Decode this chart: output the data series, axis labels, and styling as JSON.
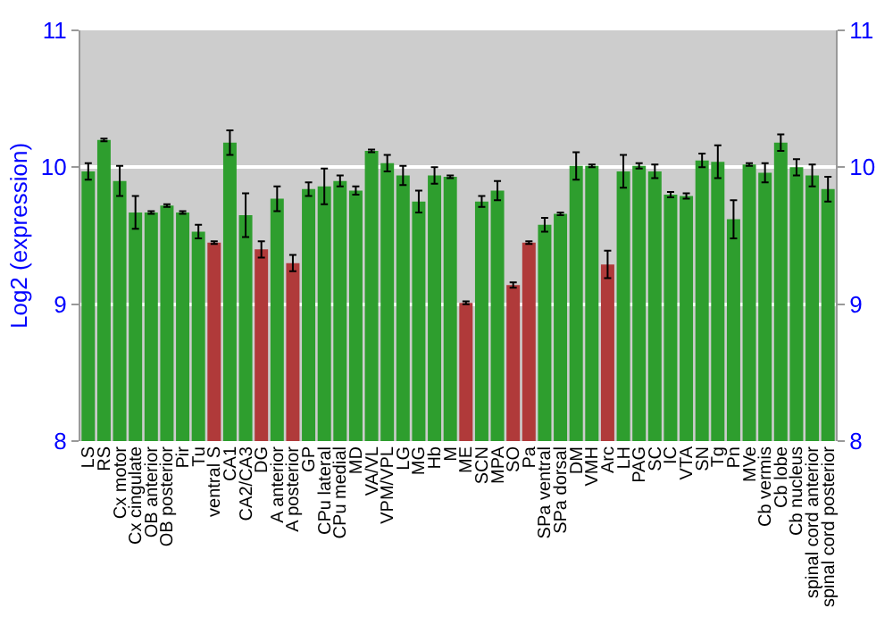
{
  "chart_data": {
    "type": "bar",
    "ylabel": "Log2 (expression)",
    "categories": [
      "LS",
      "RS",
      "Cx motor",
      "Cx cingulate",
      "OB anterior",
      "OB posterior",
      "Pir",
      "Tu",
      "ventral S",
      "CA1",
      "CA2/CA3",
      "DG",
      "A anterior",
      "A posterior",
      "GP",
      "CPu lateral",
      "CPu medial",
      "MD",
      "VA/VL",
      "VPM/VPL",
      "LG",
      "MG",
      "Hb",
      "M",
      "ME",
      "SCN",
      "MPA",
      "SO",
      "Pa",
      "SPa ventral",
      "SPa dorsal",
      "DM",
      "VMH",
      "Arc",
      "LH",
      "PAG",
      "SC",
      "IC",
      "VTA",
      "SN",
      "Tg",
      "Pn",
      "MVe",
      "Cb vermis",
      "Cb lobe",
      "Cb nucleus",
      "spinal cord anterior",
      "spinal cord posterior"
    ],
    "values": [
      9.97,
      10.2,
      9.9,
      9.67,
      9.67,
      9.72,
      9.67,
      9.53,
      9.45,
      10.18,
      9.65,
      9.4,
      9.77,
      9.3,
      9.84,
      9.86,
      9.9,
      9.83,
      10.12,
      10.03,
      9.94,
      9.75,
      9.94,
      9.93,
      9.01,
      9.75,
      9.83,
      9.14,
      9.45,
      9.58,
      9.66,
      10.01,
      10.01,
      9.29,
      9.97,
      10.01,
      9.97,
      9.8,
      9.79,
      10.05,
      10.04,
      9.62,
      10.02,
      9.96,
      10.18,
      10.0,
      9.94,
      9.84
    ],
    "errors": [
      0.06,
      0.01,
      0.11,
      0.12,
      0.01,
      0.01,
      0.01,
      0.05,
      0.01,
      0.09,
      0.16,
      0.06,
      0.09,
      0.06,
      0.05,
      0.13,
      0.04,
      0.03,
      0.01,
      0.06,
      0.07,
      0.08,
      0.06,
      0.01,
      0.01,
      0.04,
      0.07,
      0.02,
      0.01,
      0.05,
      0.01,
      0.1,
      0.01,
      0.1,
      0.12,
      0.02,
      0.05,
      0.02,
      0.02,
      0.05,
      0.12,
      0.14,
      0.01,
      0.07,
      0.06,
      0.06,
      0.08,
      0.09
    ],
    "colors": [
      "#2e9e2e",
      "#2e9e2e",
      "#2e9e2e",
      "#2e9e2e",
      "#2e9e2e",
      "#2e9e2e",
      "#2e9e2e",
      "#2e9e2e",
      "#b03a3a",
      "#2e9e2e",
      "#2e9e2e",
      "#b03a3a",
      "#2e9e2e",
      "#b03a3a",
      "#2e9e2e",
      "#2e9e2e",
      "#2e9e2e",
      "#2e9e2e",
      "#2e9e2e",
      "#2e9e2e",
      "#2e9e2e",
      "#2e9e2e",
      "#2e9e2e",
      "#2e9e2e",
      "#b03a3a",
      "#2e9e2e",
      "#2e9e2e",
      "#b03a3a",
      "#b03a3a",
      "#2e9e2e",
      "#2e9e2e",
      "#2e9e2e",
      "#2e9e2e",
      "#b03a3a",
      "#2e9e2e",
      "#2e9e2e",
      "#2e9e2e",
      "#2e9e2e",
      "#2e9e2e",
      "#2e9e2e",
      "#2e9e2e",
      "#2e9e2e",
      "#2e9e2e",
      "#2e9e2e",
      "#2e9e2e",
      "#2e9e2e",
      "#2e9e2e",
      "#2e9e2e"
    ],
    "ylim": [
      8,
      11
    ],
    "yticks": [
      8,
      9,
      10,
      11
    ],
    "y2lim": [
      8,
      11
    ],
    "y2ticks": [
      8,
      9,
      10,
      11
    ],
    "grid": "y"
  }
}
